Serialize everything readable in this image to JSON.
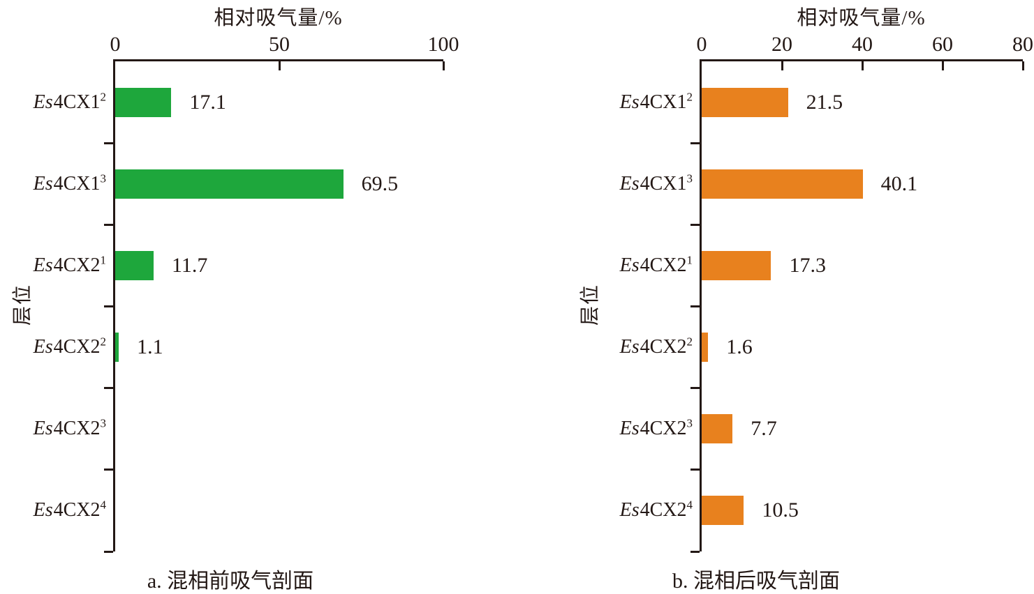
{
  "figure": {
    "background": "#ffffff",
    "text_color": "#231815",
    "axis_color": "#231815"
  },
  "chart_data": [
    {
      "type": "bar",
      "orientation": "horizontal",
      "panel": "a",
      "title": "相对吸气量/%",
      "xlabel": "相对吸气量/%",
      "ylabel": "层位",
      "caption": "a. 混相前吸气剖面",
      "legend": "none",
      "grid": false,
      "axis_position": "top-left",
      "xlim": [
        0,
        100
      ],
      "xticks": [
        0,
        50,
        100
      ],
      "bar_color": "#1ea73c",
      "categories": [
        {
          "name": "Es4CX1²",
          "em": "Es",
          "base": "4CX1",
          "sup": "2"
        },
        {
          "name": "Es4CX1³",
          "em": "Es",
          "base": "4CX1",
          "sup": "3"
        },
        {
          "name": "Es4CX2¹",
          "em": "Es",
          "base": "4CX2",
          "sup": "1"
        },
        {
          "name": "Es4CX2²",
          "em": "Es",
          "base": "4CX2",
          "sup": "2"
        },
        {
          "name": "Es4CX2³",
          "em": "Es",
          "base": "4CX2",
          "sup": "3"
        },
        {
          "name": "Es4CX2⁴",
          "em": "Es",
          "base": "4CX2",
          "sup": "4"
        }
      ],
      "values": [
        17.1,
        69.5,
        11.7,
        1.1,
        0,
        0
      ],
      "value_labels": [
        "17.1",
        "69.5",
        "11.7",
        "1.1",
        "",
        ""
      ]
    },
    {
      "type": "bar",
      "orientation": "horizontal",
      "panel": "b",
      "title": "相对吸气量/%",
      "xlabel": "相对吸气量/%",
      "ylabel": "层位",
      "caption": "b. 混相后吸气剖面",
      "legend": "none",
      "grid": false,
      "axis_position": "top-left",
      "xlim": [
        0,
        80
      ],
      "xticks": [
        0,
        20,
        40,
        60,
        80
      ],
      "bar_color": "#e8811e",
      "categories": [
        {
          "name": "Es4CX1²",
          "em": "Es",
          "base": "4CX1",
          "sup": "2"
        },
        {
          "name": "Es4CX1³",
          "em": "Es",
          "base": "4CX1",
          "sup": "3"
        },
        {
          "name": "Es4CX2¹",
          "em": "Es",
          "base": "4CX2",
          "sup": "1"
        },
        {
          "name": "Es4CX2²",
          "em": "Es",
          "base": "4CX2",
          "sup": "2"
        },
        {
          "name": "Es4CX2³",
          "em": "Es",
          "base": "4CX2",
          "sup": "3"
        },
        {
          "name": "Es4CX2⁴",
          "em": "Es",
          "base": "4CX2",
          "sup": "4"
        }
      ],
      "values": [
        21.5,
        40.1,
        17.3,
        1.6,
        7.7,
        10.5
      ],
      "value_labels": [
        "21.5",
        "40.1",
        "17.3",
        "1.6",
        "7.7",
        "10.5"
      ]
    }
  ]
}
